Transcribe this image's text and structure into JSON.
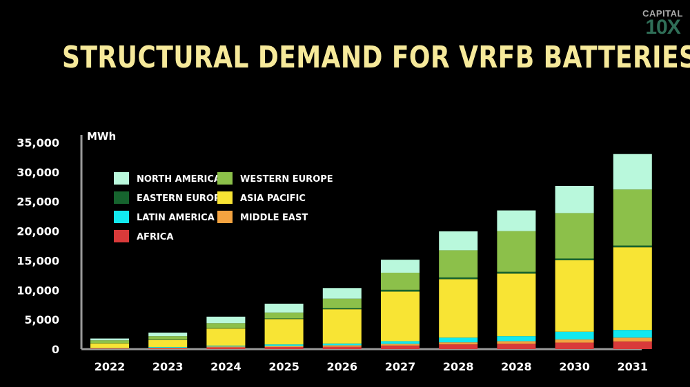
{
  "logo": {
    "line1": "CAPITAL",
    "line2": "10X"
  },
  "chart_data": {
    "type": "bar",
    "stacked": true,
    "title": "STRUCTURAL DEMAND FOR VRFB BATTERIES",
    "ylabel": "MWh",
    "xlabel": "",
    "ylim": [
      0,
      35000
    ],
    "yticks": [
      "0",
      "5,000",
      "10,000",
      "15,000",
      "20,000",
      "25,000",
      "30,000",
      "35,000"
    ],
    "categories": [
      "2022",
      "2023",
      "2024",
      "2025",
      "2026",
      "2027",
      "2028",
      "2028",
      "2030",
      "2031"
    ],
    "legend_position": "top-left",
    "grid": false,
    "series": [
      {
        "name": "AFRICA",
        "color": "#d93a3a",
        "values": [
          100,
          150,
          300,
          350,
          400,
          600,
          800,
          900,
          1100,
          1300
        ]
      },
      {
        "name": "MIDDLE EAST",
        "color": "#f4a340",
        "values": [
          50,
          100,
          150,
          200,
          250,
          300,
          350,
          450,
          550,
          650
        ]
      },
      {
        "name": "LATIN AMERICA",
        "color": "#12e8ef",
        "values": [
          50,
          100,
          150,
          250,
          300,
          450,
          800,
          850,
          1300,
          1300
        ]
      },
      {
        "name": "ASIA PACIFIC",
        "color": "#f8e434",
        "values": [
          800,
          1200,
          2900,
          4300,
          5800,
          8400,
          9900,
          10600,
          12100,
          14000
        ]
      },
      {
        "name": "EASTERN EUROPE",
        "color": "#16642e",
        "values": [
          50,
          50,
          100,
          100,
          200,
          300,
          300,
          300,
          300,
          300
        ]
      },
      {
        "name": "WESTERN EUROPE",
        "color": "#8cc04a",
        "values": [
          450,
          600,
          800,
          1000,
          1600,
          2900,
          4600,
          6900,
          7700,
          9500
        ]
      },
      {
        "name": "NORTH AMERICA",
        "color": "#b9f8dc",
        "values": [
          300,
          600,
          1100,
          1500,
          1800,
          2200,
          3200,
          3500,
          4600,
          6000
        ]
      }
    ],
    "legend_order": [
      "NORTH AMERICA",
      "WESTERN EUROPE",
      "EASTERN EUROPE",
      "ASIA PACIFIC",
      "LATIN AMERICA",
      "MIDDLE EAST",
      "AFRICA"
    ]
  }
}
